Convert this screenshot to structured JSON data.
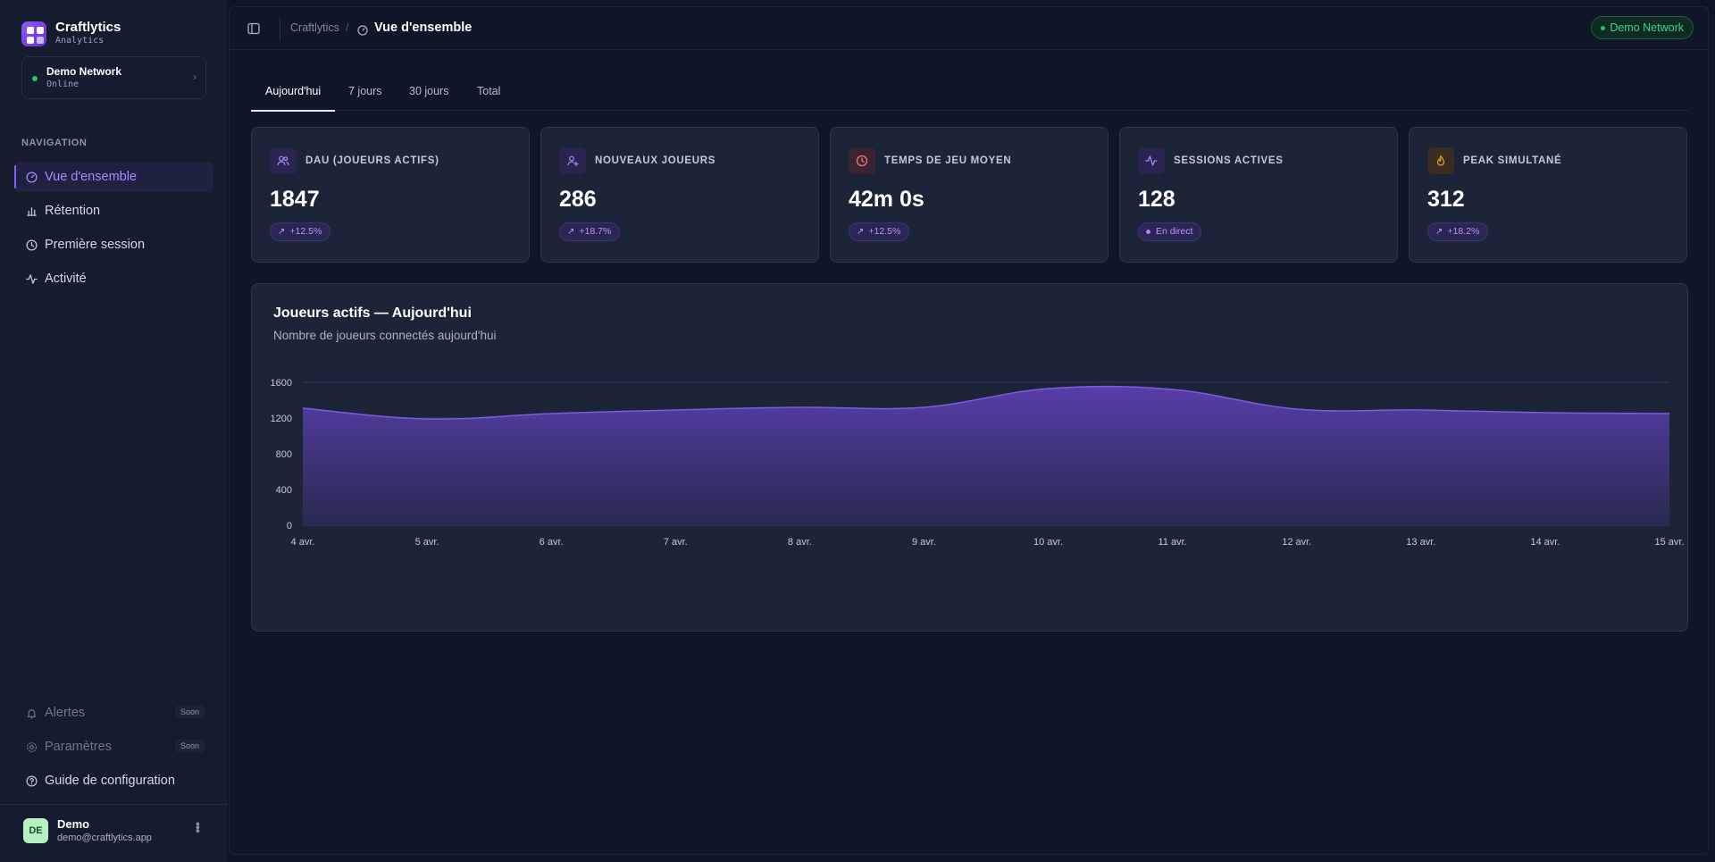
{
  "brand": {
    "name": "Craftlytics",
    "subtitle": "Analytics"
  },
  "network": {
    "name": "Demo Network",
    "status": "Online",
    "status_color": "#22c55e"
  },
  "sidebar": {
    "heading": "NAVIGATION",
    "items": [
      {
        "label": "Vue d'ensemble",
        "icon": "dashboard-icon",
        "active": true
      },
      {
        "label": "Rétention",
        "icon": "bar-chart-icon"
      },
      {
        "label": "Première session",
        "icon": "clock-icon"
      },
      {
        "label": "Activité",
        "icon": "activity-icon"
      }
    ],
    "bottom_items": [
      {
        "label": "Alertes",
        "icon": "bell-icon",
        "badge": "Soon"
      },
      {
        "label": "Paramètres",
        "icon": "gear-icon",
        "badge": "Soon"
      },
      {
        "label": "Guide de configuration",
        "icon": "help-circle-icon"
      }
    ]
  },
  "user": {
    "initials": "DE",
    "name": "Demo",
    "email": "demo@craftlytics.app"
  },
  "topbar": {
    "breadcrumb_root": "Craftlytics",
    "breadcrumb_separator": "/",
    "breadcrumb_current": "Vue d'ensemble",
    "network_badge": "Demo Network"
  },
  "tabs": [
    {
      "label": "Aujourd'hui",
      "active": true
    },
    {
      "label": "7 jours"
    },
    {
      "label": "30 jours"
    },
    {
      "label": "Total"
    }
  ],
  "stats": [
    {
      "label": "DAU (JOUEURS ACTIFS)",
      "value": "1847",
      "badge": "+12.5%",
      "icon": "users-icon",
      "accent": "#8b5cf6"
    },
    {
      "label": "NOUVEAUX JOUEURS",
      "value": "286",
      "badge": "+18.7%",
      "icon": "user-plus-icon",
      "accent": "#8b5cf6"
    },
    {
      "label": "TEMPS DE JEU MOYEN",
      "value": "42m 0s",
      "badge": "+12.5%",
      "icon": "clock-icon",
      "accent": "#f87171"
    },
    {
      "label": "SESSIONS ACTIVES",
      "value": "128",
      "badge": "En direct",
      "icon": "activity-icon",
      "accent": "#8b5cf6"
    },
    {
      "label": "PEAK SIMULTANÉ",
      "value": "312",
      "badge": "+18.2%",
      "icon": "flame-icon",
      "accent": "#f59e0b"
    }
  ],
  "chart": {
    "title": "Joueurs actifs — Aujourd'hui",
    "subtitle": "Nombre de joueurs connectés aujourd'hui"
  },
  "chart_data": {
    "type": "area",
    "title": "Joueurs actifs — Aujourd'hui",
    "subtitle": "Nombre de joueurs connectés aujourd'hui",
    "xlabel": "",
    "ylabel": "",
    "x": [
      "4 avr.",
      "5 avr.",
      "6 avr.",
      "7 avr.",
      "8 avr.",
      "9 avr.",
      "10 avr.",
      "11 avr.",
      "12 avr.",
      "13 avr.",
      "14 avr.",
      "15 avr."
    ],
    "series": [
      {
        "values": [
          1310,
          1190,
          1250,
          1290,
          1320,
          1320,
          1530,
          1520,
          1300,
          1290,
          1260,
          1250
        ]
      }
    ],
    "y_ticks": [
      0,
      400,
      800,
      1200,
      1600
    ],
    "ylim": [
      0,
      1600
    ],
    "grid": true,
    "legend": "none",
    "color": "#6d4fc2"
  }
}
